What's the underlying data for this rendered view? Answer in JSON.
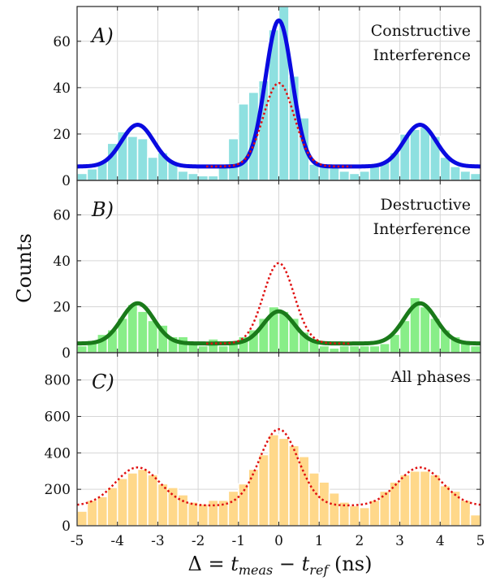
{
  "chart_data": {
    "type": "bar",
    "xlabel": "Δ = t_meas − t_ref (ns)",
    "ylabel": "Counts",
    "xlim": [
      -5,
      5
    ],
    "x_ticks": [
      "-5",
      "-4",
      "-3",
      "-2",
      "-1",
      "0",
      "1",
      "2",
      "3",
      "4",
      "5"
    ],
    "grid": true,
    "bin_centers": [
      -4.875,
      -4.625,
      -4.375,
      -4.125,
      -3.875,
      -3.625,
      -3.375,
      -3.125,
      -2.875,
      -2.625,
      -2.375,
      -2.125,
      -1.875,
      -1.625,
      -1.375,
      -1.125,
      -0.875,
      -0.625,
      -0.375,
      -0.125,
      0.125,
      0.375,
      0.625,
      0.875,
      1.125,
      1.375,
      1.625,
      1.875,
      2.125,
      2.375,
      2.625,
      2.875,
      3.125,
      3.375,
      3.625,
      3.875,
      4.125,
      4.375,
      4.625,
      4.875
    ],
    "panels": [
      {
        "label": "A)",
        "annotation": [
          "Constructive",
          "Interference"
        ],
        "ylim": [
          0,
          75
        ],
        "y_ticks": [
          "0",
          "20",
          "40",
          "60"
        ],
        "bar_color": "#8ee0e0",
        "hist": [
          3,
          5,
          8,
          16,
          21,
          19,
          18,
          10,
          12,
          8,
          4,
          3,
          2,
          2,
          6,
          18,
          33,
          38,
          43,
          65,
          75,
          45,
          27,
          7,
          7,
          6,
          4,
          3,
          4,
          6,
          8,
          12,
          20,
          22,
          23,
          19,
          10,
          6,
          4,
          3
        ],
        "series": [
          {
            "name": "",
            "color": "#0a0ae0",
            "style": "solid",
            "width": 5,
            "curve": {
              "baseline": 6,
              "peaks": [
                [
                  -3.5,
                  18,
                  0.4
                ],
                [
                  0,
                  63,
                  0.33
                ],
                [
                  3.5,
                  18,
                  0.4
                ]
              ]
            }
          },
          {
            "name": "",
            "color": "#e01010",
            "style": "dotted",
            "width": 2.5,
            "curve": {
              "baseline": 6,
              "peaks": [
                [
                  0,
                  36,
                  0.38
                ]
              ],
              "xrange": [
                -1.8,
                1.8
              ]
            }
          }
        ]
      },
      {
        "label": "B)",
        "annotation": [
          "Destructive",
          "Interference"
        ],
        "ylim": [
          0,
          75
        ],
        "y_ticks": [
          "0",
          "20",
          "40",
          "60"
        ],
        "bar_color": "#88ee88",
        "hist": [
          3,
          5,
          8,
          10,
          15,
          21,
          18,
          14,
          12,
          7,
          7,
          4,
          3,
          6,
          3,
          4,
          7,
          10,
          15,
          20,
          18,
          15,
          9,
          6,
          3,
          2,
          3,
          3,
          3,
          3,
          4,
          8,
          14,
          24,
          20,
          15,
          10,
          7,
          5,
          3
        ],
        "series": [
          {
            "name": "",
            "color": "#1a7a1a",
            "style": "solid",
            "width": 5,
            "curve": {
              "baseline": 4,
              "peaks": [
                [
                  -3.5,
                  17.5,
                  0.4
                ],
                [
                  0,
                  14,
                  0.38
                ],
                [
                  3.5,
                  17.5,
                  0.4
                ]
              ]
            }
          },
          {
            "name": "",
            "color": "#e01010",
            "style": "dotted",
            "width": 2.5,
            "curve": {
              "baseline": 4,
              "peaks": [
                [
                  0,
                  35,
                  0.38
                ]
              ],
              "xrange": [
                -1.8,
                1.8
              ]
            }
          }
        ]
      },
      {
        "label": "C)",
        "annotation": [
          "All phases"
        ],
        "ylim": [
          0,
          950
        ],
        "y_ticks": [
          "0",
          "200",
          "400",
          "600",
          "800"
        ],
        "bar_color": "#ffd88a",
        "hist": [
          80,
          140,
          160,
          210,
          260,
          290,
          310,
          280,
          230,
          210,
          170,
          130,
          120,
          140,
          140,
          190,
          230,
          310,
          390,
          500,
          480,
          440,
          380,
          290,
          240,
          180,
          130,
          110,
          100,
          140,
          190,
          240,
          280,
          300,
          300,
          280,
          220,
          190,
          140,
          60
        ],
        "series": [
          {
            "name": "",
            "color": "#e01010",
            "style": "dotted",
            "width": 2.5,
            "curve": {
              "baseline": 110,
              "peaks": [
                [
                  -3.5,
                  210,
                  0.55
                ],
                [
                  0,
                  420,
                  0.48
                ],
                [
                  3.5,
                  210,
                  0.55
                ]
              ]
            }
          }
        ]
      }
    ]
  }
}
